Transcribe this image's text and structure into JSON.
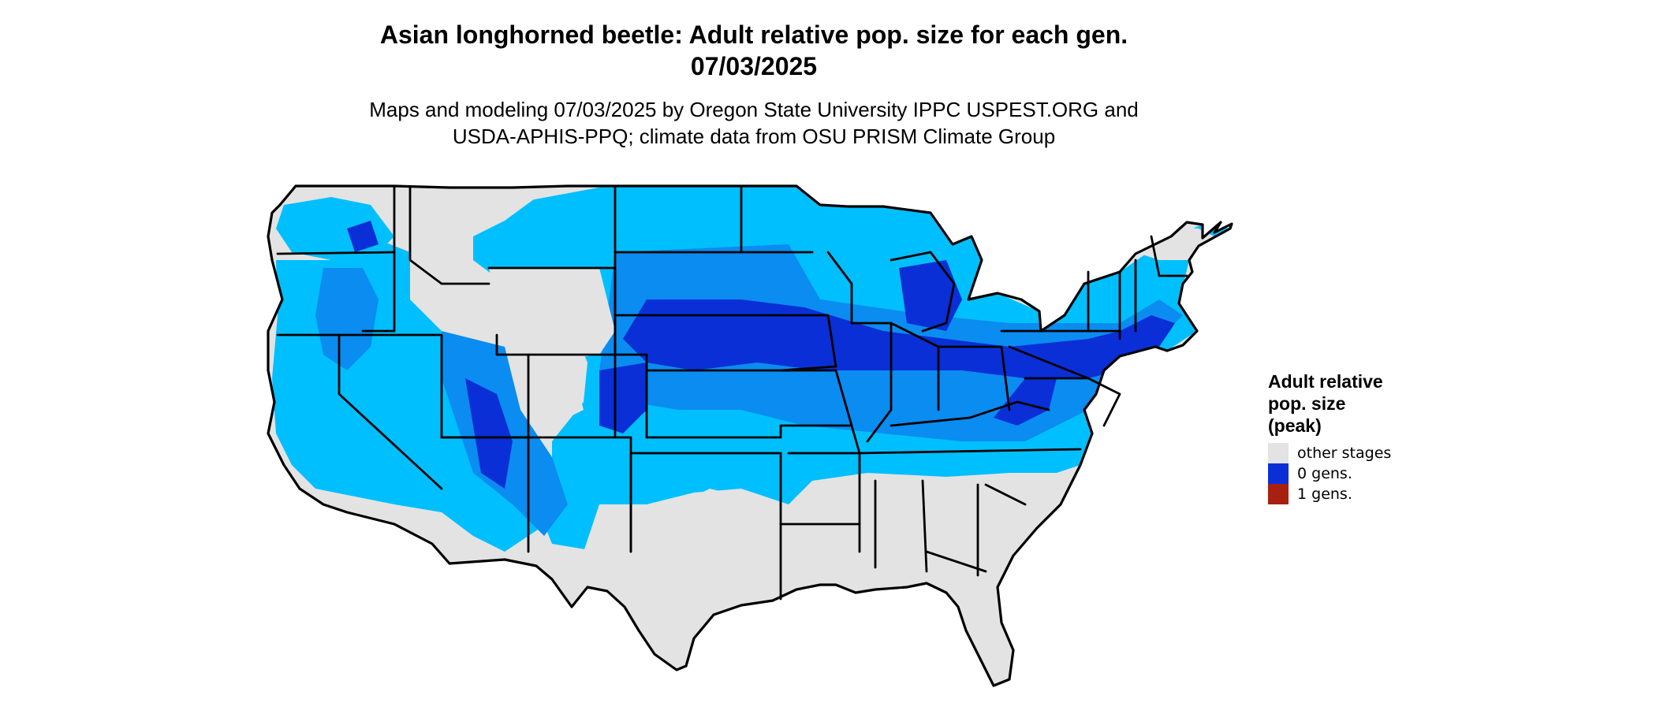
{
  "header": {
    "title_line1": "Asian longhorned beetle: Adult relative pop. size for each gen.",
    "title_line2": "07/03/2025",
    "subtitle_line1": "Maps and modeling 07/03/2025 by Oregon State University IPPC USPEST.ORG and",
    "subtitle_line2": "USDA-APHIS-PPQ; climate data from OSU PRISM Climate Group"
  },
  "legend": {
    "title": "Adult relative\npop. size\n(peak)",
    "items": [
      {
        "label": "other stages",
        "color": "#e3e3e3"
      },
      {
        "label": "0 gens.",
        "color": "#0a2fd6"
      },
      {
        "label": "1 gens.",
        "color": "#a8200f"
      }
    ]
  },
  "map_colors": {
    "other_stages": "#e3e3e3",
    "gen0_light": "#00bfff",
    "gen0_mid": "#0a8cf0",
    "gen0_dark": "#0a2fd6",
    "borders": "#000000"
  },
  "map_data": {
    "region": "Conterminous United States",
    "states_shown": true
  }
}
